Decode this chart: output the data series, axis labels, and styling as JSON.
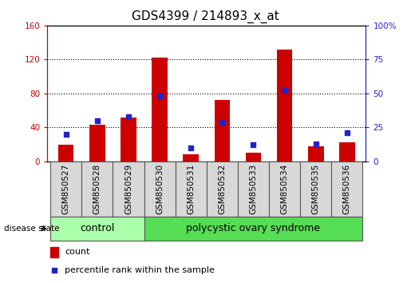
{
  "title": "GDS4399 / 214893_x_at",
  "samples": [
    "GSM850527",
    "GSM850528",
    "GSM850529",
    "GSM850530",
    "GSM850531",
    "GSM850532",
    "GSM850533",
    "GSM850534",
    "GSM850535",
    "GSM850536"
  ],
  "counts": [
    20,
    43,
    52,
    122,
    8,
    72,
    10,
    132,
    18,
    22
  ],
  "percentiles": [
    20,
    30,
    33,
    48,
    10,
    29,
    12,
    52,
    13,
    21
  ],
  "bar_color": "#cc0000",
  "dot_color": "#2222cc",
  "left_ylim": [
    0,
    160
  ],
  "right_ylim": [
    0,
    100
  ],
  "left_yticks": [
    0,
    40,
    80,
    120,
    160
  ],
  "right_yticks": [
    0,
    25,
    50,
    75,
    100
  ],
  "right_yticklabels": [
    "0",
    "25",
    "50",
    "75",
    "100%"
  ],
  "control_label": "control",
  "disease_label": "polycystic ovary syndrome",
  "disease_state_label": "disease state",
  "legend_count": "count",
  "legend_percentile": "percentile rank within the sample",
  "sample_bg_color": "#d8d8d8",
  "control_color": "#aaffaa",
  "disease_color": "#55dd55",
  "title_fontsize": 11,
  "tick_fontsize": 7.5,
  "label_fontsize": 9,
  "n_control": 3,
  "n_disease": 7
}
